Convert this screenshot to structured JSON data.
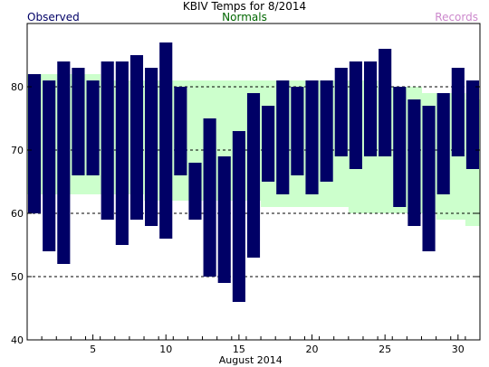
{
  "chart_data": {
    "type": "bar",
    "title": "KBIV Temps for 8/2014",
    "xlabel": "August 2014",
    "ylabel": "",
    "ylim": [
      40,
      90
    ],
    "xlim": [
      0.5,
      31.5
    ],
    "yticks": [
      40,
      50,
      60,
      70,
      80
    ],
    "xticks": [
      5,
      10,
      15,
      20,
      25,
      30
    ],
    "grid": "dashed horizontal at 50, 60, 70, 80",
    "legend": {
      "placement": "top",
      "entries": [
        {
          "label": "Observed",
          "color": "#000066"
        },
        {
          "label": "Normals",
          "color": "#006600"
        },
        {
          "label": "Records",
          "color": "#cc88cc"
        }
      ]
    },
    "days": [
      1,
      2,
      3,
      4,
      5,
      6,
      7,
      8,
      9,
      10,
      11,
      12,
      13,
      14,
      15,
      16,
      17,
      18,
      19,
      20,
      21,
      22,
      23,
      24,
      25,
      26,
      27,
      28,
      29,
      30,
      31
    ],
    "series": [
      {
        "name": "Observed",
        "color": "#000066",
        "high": [
          82,
          81,
          84,
          83,
          81,
          84,
          84,
          85,
          83,
          87,
          80,
          68,
          75,
          69,
          73,
          79,
          77,
          81,
          80,
          81,
          81,
          83,
          84,
          84,
          86,
          80,
          78,
          77,
          79,
          83,
          81
        ],
        "low": [
          60,
          54,
          52,
          66,
          66,
          59,
          55,
          59,
          58,
          56,
          66,
          59,
          50,
          49,
          46,
          53,
          65,
          63,
          66,
          63,
          65,
          69,
          67,
          69,
          69,
          61,
          58,
          54,
          63,
          69,
          67
        ]
      },
      {
        "name": "Normals",
        "color": "#ccffcc",
        "high": [
          82,
          82,
          82,
          82,
          82,
          81,
          81,
          81,
          81,
          81,
          81,
          81,
          81,
          81,
          81,
          81,
          81,
          81,
          81,
          81,
          81,
          81,
          81,
          81,
          80,
          80,
          80,
          79,
          79,
          79,
          78
        ],
        "low": [
          63,
          63,
          63,
          63,
          63,
          63,
          63,
          63,
          62,
          62,
          62,
          62,
          62,
          62,
          62,
          62,
          61,
          61,
          61,
          61,
          61,
          61,
          60,
          60,
          60,
          60,
          60,
          60,
          59,
          59,
          58
        ]
      }
    ]
  },
  "header": {
    "title": "KBIV Temps for 8/2014",
    "legend_observed": "Observed",
    "legend_normals": "Normals",
    "legend_records": "Records"
  },
  "colors": {
    "observed": "#000066",
    "normals": "#ccffcc",
    "normals_text": "#006600",
    "records": "#cc88cc",
    "grid": "#000000"
  }
}
